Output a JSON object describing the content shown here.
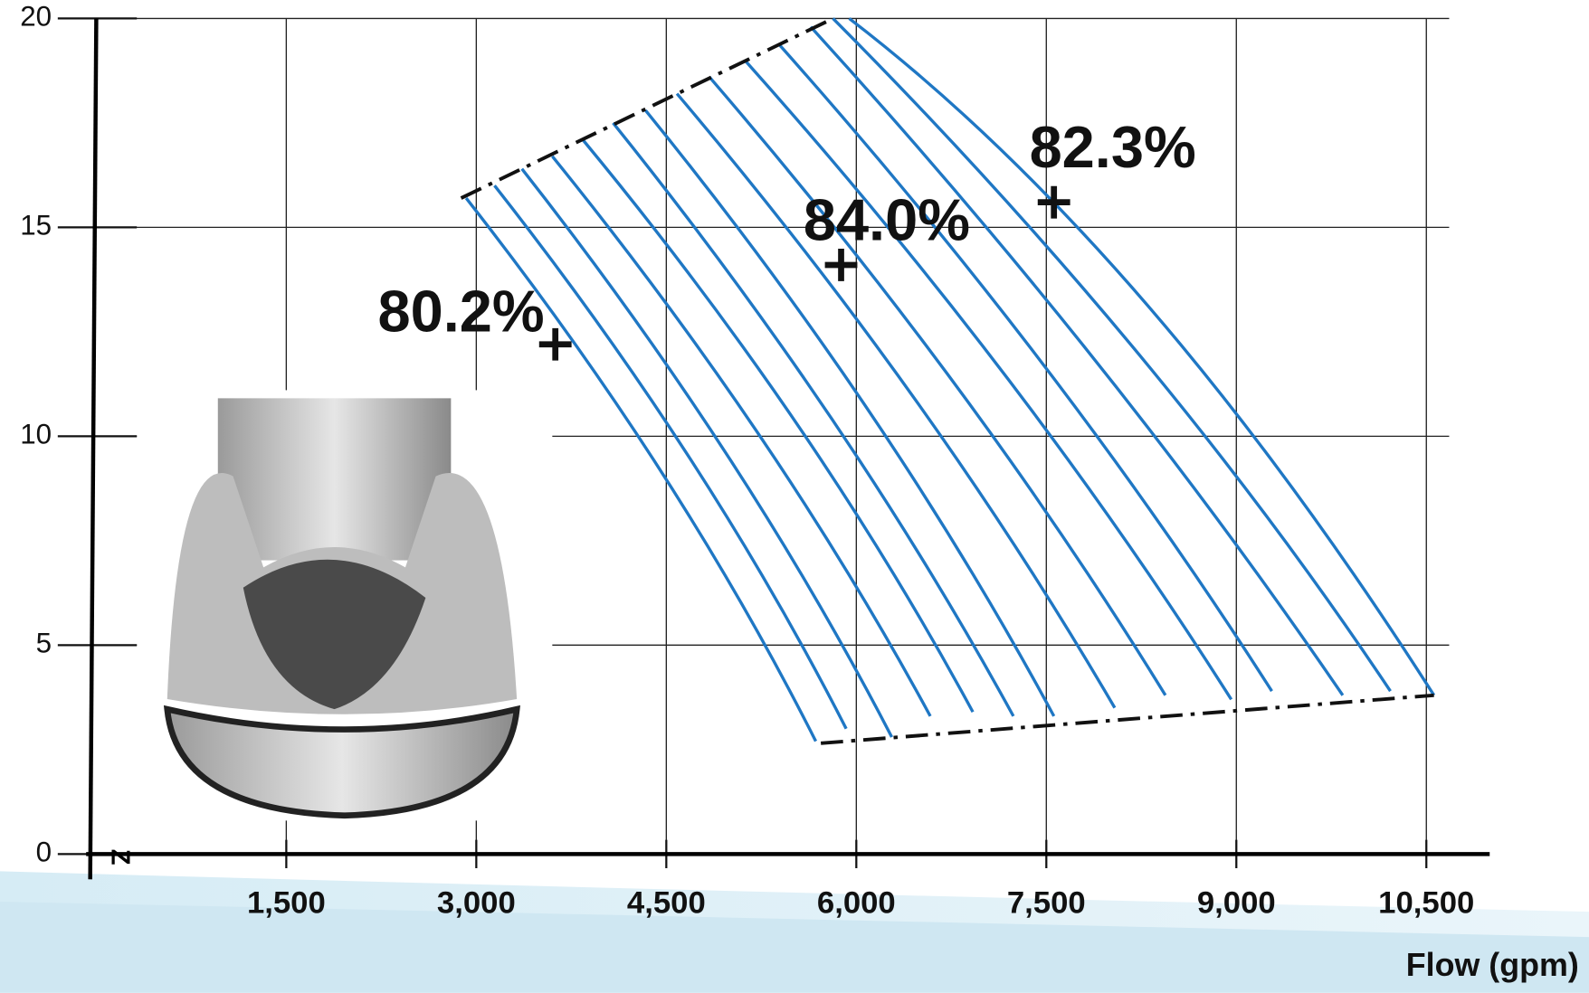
{
  "chart_data": {
    "type": "line",
    "x_label": "Flow (gpm)",
    "origin_mark": "Z",
    "color": "#1f77c4",
    "grid": true,
    "xlim": [
      0,
      11000
    ],
    "ylim": [
      0,
      20
    ],
    "xticks": [
      {
        "value": 1500,
        "label": "1,500"
      },
      {
        "value": 3000,
        "label": "3,000"
      },
      {
        "value": 4500,
        "label": "4,500"
      },
      {
        "value": 6000,
        "label": "6,000"
      },
      {
        "value": 7500,
        "label": "7,500"
      },
      {
        "value": 9000,
        "label": "9,000"
      },
      {
        "value": 10500,
        "label": "10,500"
      }
    ],
    "yticks": [
      0,
      5,
      10,
      15,
      20
    ],
    "series": [
      {
        "x": [
          2920,
          4450,
          5680
        ],
        "values": [
          15.7,
          9.2,
          2.7
        ]
      },
      {
        "x": [
          3144,
          4680,
          5920
        ],
        "values": [
          16.0,
          9.5,
          3.0
        ]
      },
      {
        "x": [
          3360,
          4970,
          6280
        ],
        "values": [
          16.4,
          9.6,
          2.8
        ]
      },
      {
        "x": [
          3600,
          5240,
          6584
        ],
        "values": [
          16.7,
          10.0,
          3.3
        ]
      },
      {
        "x": [
          3840,
          5530,
          6920
        ],
        "values": [
          17.1,
          10.3,
          3.4
        ]
      },
      {
        "x": [
          4080,
          5810,
          7240
        ],
        "values": [
          17.5,
          10.4,
          3.3
        ]
      },
      {
        "x": [
          4336,
          6100,
          7560
        ],
        "values": [
          17.8,
          10.6,
          3.3
        ]
      },
      {
        "x": [
          4584,
          6460,
          8040
        ],
        "values": [
          18.2,
          10.9,
          3.5
        ]
      },
      {
        "x": [
          4840,
          6790,
          8440
        ],
        "values": [
          18.6,
          11.2,
          3.8
        ]
      },
      {
        "x": [
          5120,
          7190,
          8960
        ],
        "values": [
          19.0,
          11.4,
          3.7
        ]
      },
      {
        "x": [
          5384,
          7480,
          9280
        ],
        "values": [
          19.4,
          11.7,
          3.9
        ]
      },
      {
        "x": [
          5640,
          7890,
          9840
        ],
        "values": [
          19.8,
          11.8,
          3.8
        ]
      },
      {
        "x": [
          5816,
          8220,
          10216
        ],
        "values": [
          20.0,
          12.0,
          3.9
        ]
      },
      {
        "x": [
          5944,
          8280,
          10560
        ],
        "values": [
          20.0,
          13.2,
          3.8
        ]
      }
    ],
    "annotations": [
      {
        "text": "80.2%",
        "x": 3624,
        "y": 12.2
      },
      {
        "text": "84.0%",
        "x": 5880,
        "y": 14.1
      },
      {
        "text": "82.3%",
        "x": 7560,
        "y": 15.6
      }
    ]
  }
}
